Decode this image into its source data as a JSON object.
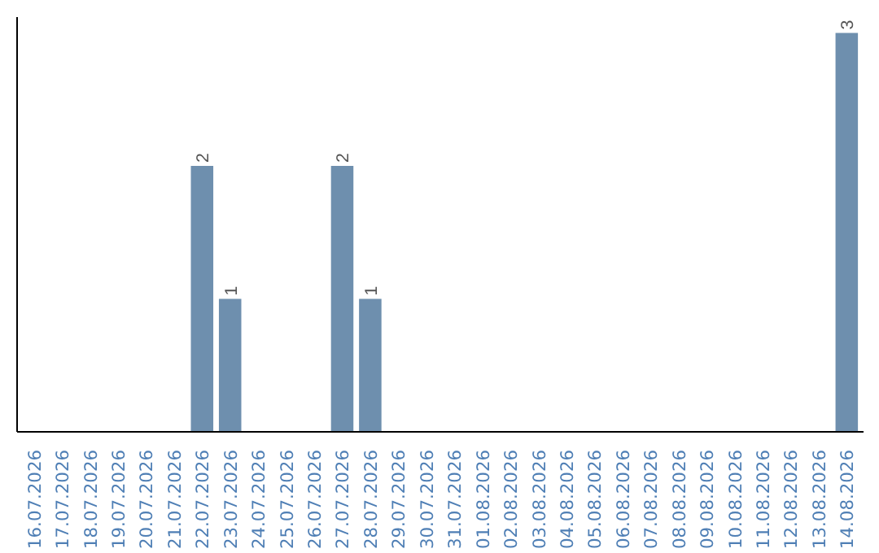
{
  "chart_data": {
    "type": "bar",
    "categories": [
      "16.07.2026",
      "17.07.2026",
      "18.07.2026",
      "19.07.2026",
      "20.07.2026",
      "21.07.2026",
      "22.07.2026",
      "23.07.2026",
      "24.07.2026",
      "25.07.2026",
      "26.07.2026",
      "27.07.2026",
      "28.07.2026",
      "29.07.2026",
      "30.07.2026",
      "31.07.2026",
      "01.08.2026",
      "02.08.2026",
      "03.08.2026",
      "04.08.2026",
      "05.08.2026",
      "06.08.2026",
      "07.08.2026",
      "08.08.2026",
      "09.08.2026",
      "10.08.2026",
      "11.08.2026",
      "12.08.2026",
      "13.08.2026",
      "14.08.2026"
    ],
    "values": [
      0,
      0,
      0,
      0,
      0,
      0,
      2,
      1,
      0,
      0,
      0,
      2,
      1,
      0,
      0,
      0,
      0,
      0,
      0,
      0,
      0,
      0,
      0,
      0,
      0,
      0,
      0,
      0,
      0,
      3
    ],
    "value_labels": [
      null,
      null,
      null,
      null,
      null,
      null,
      "2",
      "1",
      null,
      null,
      null,
      "2",
      "1",
      null,
      null,
      null,
      null,
      null,
      null,
      null,
      null,
      null,
      null,
      null,
      null,
      null,
      null,
      null,
      null,
      "3"
    ],
    "color": "#6e8fae",
    "grid": false,
    "tick_labels": "x"
  }
}
